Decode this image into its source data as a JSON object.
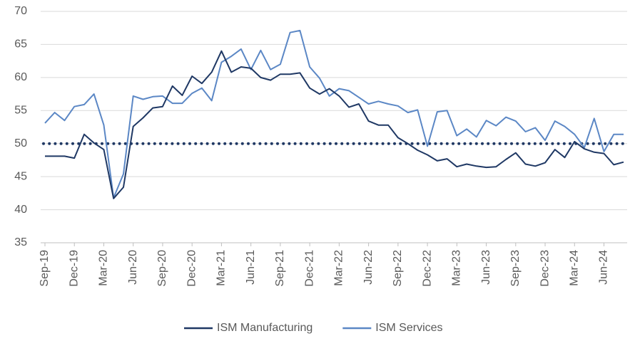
{
  "chart_data": {
    "type": "line",
    "categories": [
      "Sep-19",
      null,
      null,
      "Dec-19",
      null,
      null,
      "Mar-20",
      null,
      null,
      "Jun-20",
      null,
      null,
      "Sep-20",
      null,
      null,
      "Dec-20",
      null,
      null,
      "Mar-21",
      null,
      null,
      "Jun-21",
      null,
      null,
      "Sep-21",
      null,
      null,
      "Dec-21",
      null,
      null,
      "Mar-22",
      null,
      null,
      "Jun-22",
      null,
      null,
      "Sep-22",
      null,
      null,
      "Dec-22",
      null,
      null,
      "Mar-23",
      null,
      null,
      "Jun-23",
      null,
      null,
      "Sep-23",
      null,
      null,
      "Dec-23",
      null,
      null,
      "Mar-24",
      null,
      null,
      "Jun-24",
      null,
      null
    ],
    "series": [
      {
        "name": "ISM Manufacturing",
        "color": "#1f3864",
        "values": [
          48.1,
          48.1,
          48.1,
          47.8,
          51.4,
          50.1,
          49.1,
          41.7,
          43.4,
          52.6,
          53.9,
          55.4,
          55.6,
          58.7,
          57.3,
          60.2,
          59.1,
          60.8,
          64.0,
          60.8,
          61.6,
          61.4,
          60.0,
          59.6,
          60.5,
          60.5,
          60.7,
          58.4,
          57.5,
          58.3,
          57.2,
          55.5,
          56.0,
          53.4,
          52.8,
          52.8,
          50.9,
          50.0,
          49.0,
          48.3,
          47.4,
          47.7,
          46.5,
          46.9,
          46.6,
          46.4,
          46.5,
          47.6,
          48.6,
          46.9,
          46.6,
          47.1,
          49.1,
          47.9,
          50.3,
          49.2,
          48.7,
          48.5,
          46.8,
          47.2
        ]
      },
      {
        "name": "ISM Services",
        "color": "#5b87c5",
        "values": [
          53.1,
          54.7,
          53.5,
          55.6,
          55.9,
          57.5,
          52.8,
          41.8,
          45.4,
          57.2,
          56.7,
          57.1,
          57.2,
          56.1,
          56.1,
          57.6,
          58.4,
          56.5,
          62.3,
          63.2,
          64.3,
          61.2,
          64.1,
          61.2,
          62.0,
          66.8,
          67.1,
          61.6,
          59.9,
          57.2,
          58.3,
          58.0,
          57.0,
          56.0,
          56.4,
          56.0,
          55.7,
          54.7,
          55.1,
          49.6,
          54.8,
          55.0,
          51.2,
          52.2,
          51.0,
          53.5,
          52.7,
          54.0,
          53.4,
          51.8,
          52.4,
          50.5,
          53.4,
          52.6,
          51.4,
          49.4,
          53.8,
          48.8,
          51.4,
          51.4
        ]
      }
    ],
    "hline": 50,
    "ylim": [
      35,
      70
    ],
    "yticks": [
      35,
      40,
      45,
      50,
      55,
      60,
      65,
      70
    ],
    "grid": true,
    "legend": "bottom"
  }
}
